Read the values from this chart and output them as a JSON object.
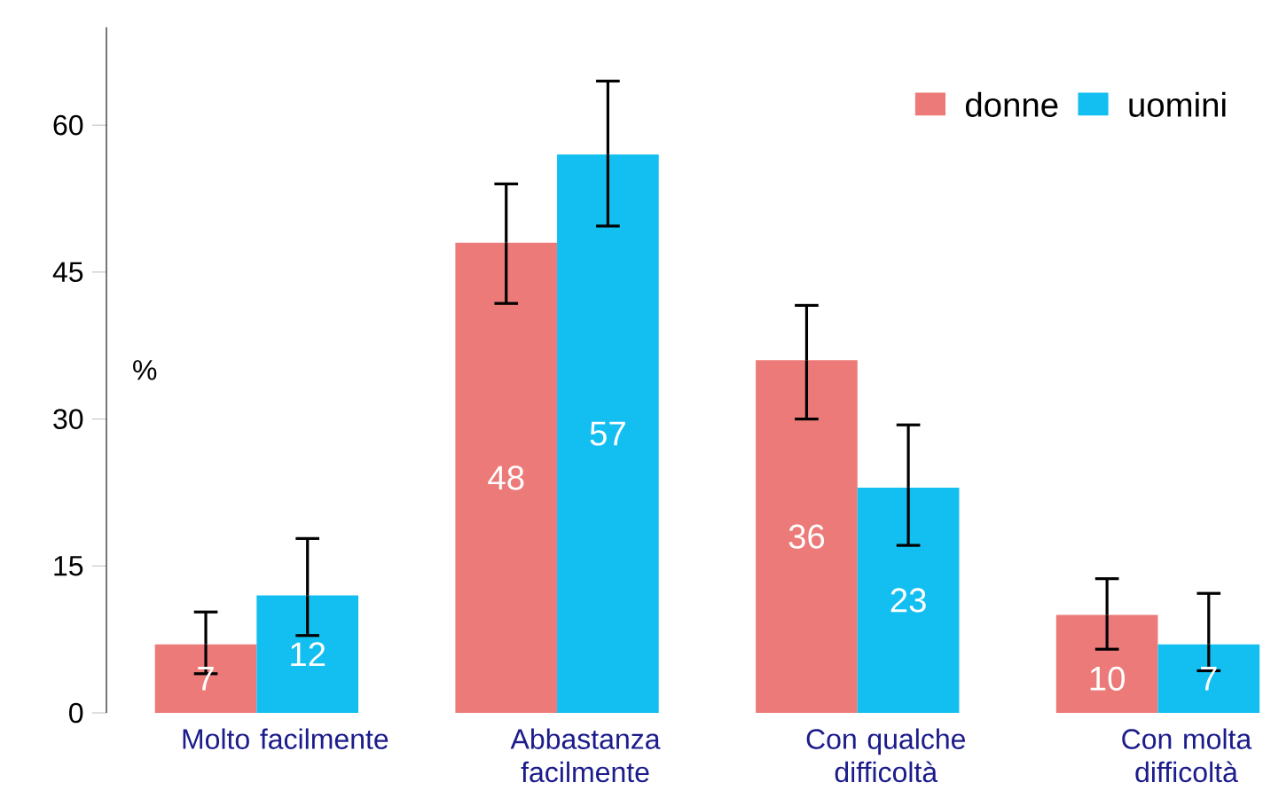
{
  "chart_data": {
    "type": "bar",
    "ylabel": "%",
    "categories": [
      "Molto facilmente",
      "Abbastanza facilmente",
      "Con qualche difficoltà",
      "Con molta difficoltà"
    ],
    "series": [
      {
        "name": "donne",
        "color": "#ec7a78",
        "values": [
          7,
          48,
          36,
          10
        ],
        "errors": [
          [
            4,
            10.3
          ],
          [
            41.8,
            54
          ],
          [
            30,
            41.6
          ],
          [
            6.5,
            13.7
          ]
        ]
      },
      {
        "name": "uomini",
        "color": "#12bff0",
        "values": [
          12,
          57,
          23,
          7
        ],
        "errors": [
          [
            7.9,
            17.8
          ],
          [
            49.7,
            64.5
          ],
          [
            17.1,
            29.4
          ],
          [
            4.3,
            12.2
          ]
        ]
      }
    ],
    "ylim": [
      0,
      70
    ],
    "yticks": [
      0,
      15,
      30,
      45,
      60
    ],
    "data_labels": true,
    "legend": "top right",
    "grid": false
  }
}
